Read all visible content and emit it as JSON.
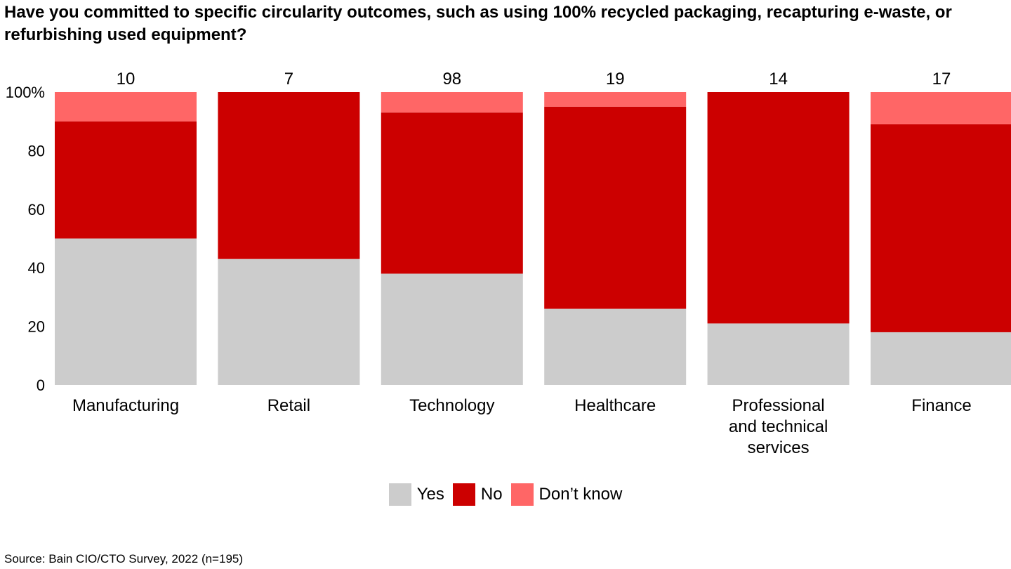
{
  "title": "Have you committed to specific circularity outcomes, such as using 100% recycled packaging, recapturing e-waste, or refurbishing used equipment?",
  "source": "Source: Bain CIO/CTO Survey, 2022 (n=195)",
  "colors": {
    "yes": "#cccccc",
    "no": "#cc0000",
    "dont_know": "#ff6666"
  },
  "chart_data": {
    "type": "bar",
    "stacked": true,
    "title": "Have you committed to specific circularity outcomes, such as using 100% recycled packaging, recapturing e-waste, or refurbishing used equipment?",
    "categories": [
      "Manufacturing",
      "Retail",
      "Technology",
      "Healthcare",
      "Professional and technical services",
      "Finance"
    ],
    "category_lines": [
      [
        "Manufacturing"
      ],
      [
        "Retail"
      ],
      [
        "Technology"
      ],
      [
        "Healthcare"
      ],
      [
        "Professional",
        "and technical",
        "services"
      ],
      [
        "Finance"
      ]
    ],
    "sample_sizes": [
      "10",
      "7",
      "98",
      "19",
      "14",
      "17"
    ],
    "series": [
      {
        "name": "Yes",
        "values": [
          50,
          43,
          38,
          26,
          21,
          18
        ]
      },
      {
        "name": "No",
        "values": [
          40,
          57,
          55,
          69,
          79,
          71
        ]
      },
      {
        "name": "Don’t know",
        "values": [
          10,
          0,
          7,
          5,
          0,
          11
        ]
      }
    ],
    "y_ticks": [
      "0",
      "20",
      "40",
      "60",
      "80",
      "100%"
    ],
    "ylim": [
      0,
      100
    ],
    "grid": false,
    "legend_position": "bottom-center"
  }
}
